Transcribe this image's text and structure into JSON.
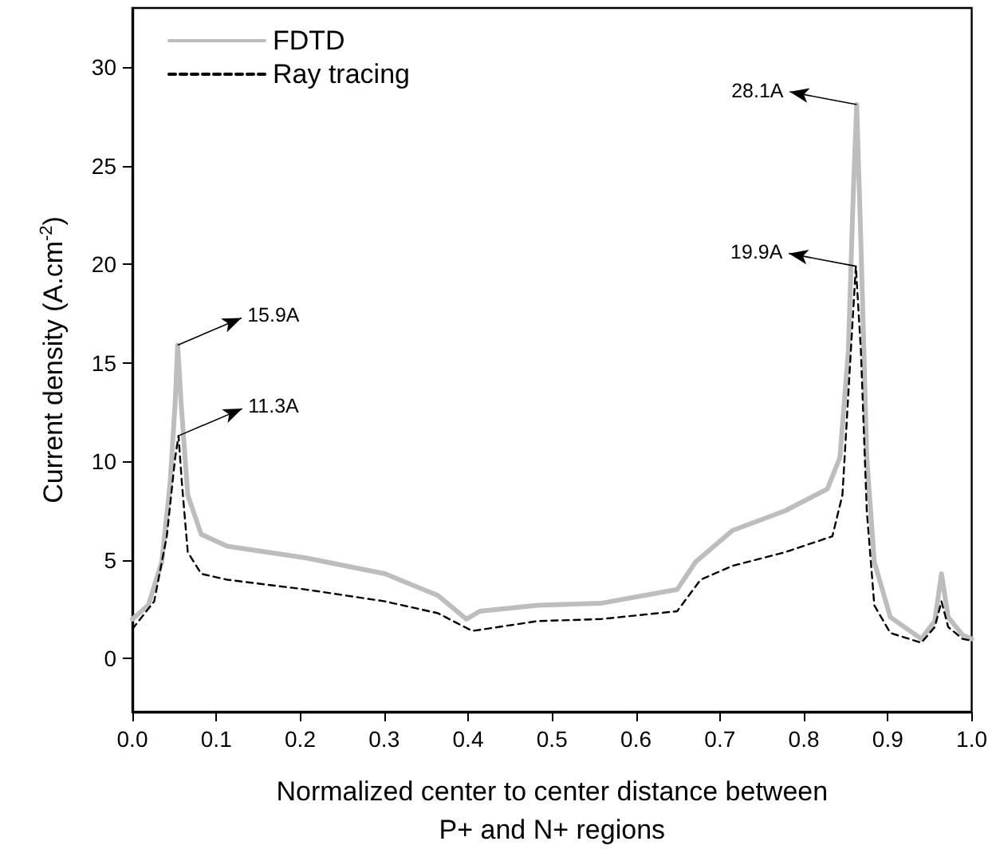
{
  "chart_data": {
    "type": "line",
    "xlabel": "Normalized center to center distance between\nP+ and N+ regions",
    "ylabel": "Current density (A.cm$^{-2}$)",
    "xlim": [
      0,
      1
    ],
    "xticks": [
      {
        "value": 0,
        "label": "0.0"
      },
      0.1,
      0.2,
      0.3,
      0.4,
      0.5,
      0.6,
      0.7,
      0.8,
      0.9,
      {
        "value": 1,
        "label": "1.0"
      }
    ],
    "ylim": [
      -2.7,
      33
    ],
    "yticks": [
      0,
      5,
      10,
      15,
      20,
      25,
      30
    ],
    "grid": false,
    "legend": "top left",
    "marker": "none",
    "series": [
      {
        "name": "FDTD",
        "color": "#bdbdbd",
        "line_style": "solid",
        "x": [
          0,
          0.019,
          0.035,
          0.045,
          0.051,
          0.054,
          0.058,
          0.066,
          0.082,
          0.113,
          0.207,
          0.301,
          0.364,
          0.398,
          0.414,
          0.483,
          0.558,
          0.649,
          0.671,
          0.715,
          0.778,
          0.828,
          0.843,
          0.853,
          0.859,
          0.863,
          0.868,
          0.875,
          0.884,
          0.903,
          0.94,
          0.956,
          0.964,
          0.972,
          0.989,
          1.0
        ],
        "values": [
          2.0,
          2.7,
          4.9,
          8.9,
          13,
          15.9,
          13,
          8.3,
          6.3,
          5.7,
          5.1,
          4.3,
          3.2,
          2.0,
          2.4,
          2.7,
          2.8,
          3.5,
          4.9,
          6.5,
          7.5,
          8.6,
          10.2,
          15.6,
          23.7,
          28.1,
          21.1,
          10.2,
          4.9,
          2.1,
          1.0,
          1.9,
          4.3,
          2.1,
          1.2,
          1.0
        ]
      },
      {
        "name": "Ray tracing",
        "color": "#000000",
        "line_style": "dashed",
        "x": [
          0,
          0.026,
          0.041,
          0.051,
          0.055,
          0.059,
          0.066,
          0.082,
          0.113,
          0.207,
          0.301,
          0.364,
          0.405,
          0.483,
          0.558,
          0.649,
          0.677,
          0.715,
          0.778,
          0.834,
          0.846,
          0.856,
          0.862,
          0.868,
          0.875,
          0.884,
          0.903,
          0.94,
          0.956,
          0.964,
          0.972,
          0.989,
          1.0
        ],
        "values": [
          1.5,
          2.9,
          6.2,
          10.2,
          11.3,
          8.9,
          5.4,
          4.3,
          4.0,
          3.5,
          2.9,
          2.3,
          1.4,
          1.9,
          2.0,
          2.4,
          4.0,
          4.7,
          5.4,
          6.2,
          8.3,
          15.6,
          19.9,
          15.6,
          7.5,
          2.7,
          1.3,
          0.8,
          1.6,
          2.9,
          1.6,
          1.0,
          0.9
        ]
      }
    ],
    "annotations": [
      {
        "text": "15.9A",
        "x": 0.054,
        "y": 15.9
      },
      {
        "text": "11.3A",
        "x": 0.055,
        "y": 11.3
      },
      {
        "text": "28.1A",
        "x": 0.863,
        "y": 28.1
      },
      {
        "text": "19.9A",
        "x": 0.862,
        "y": 19.9
      }
    ]
  }
}
